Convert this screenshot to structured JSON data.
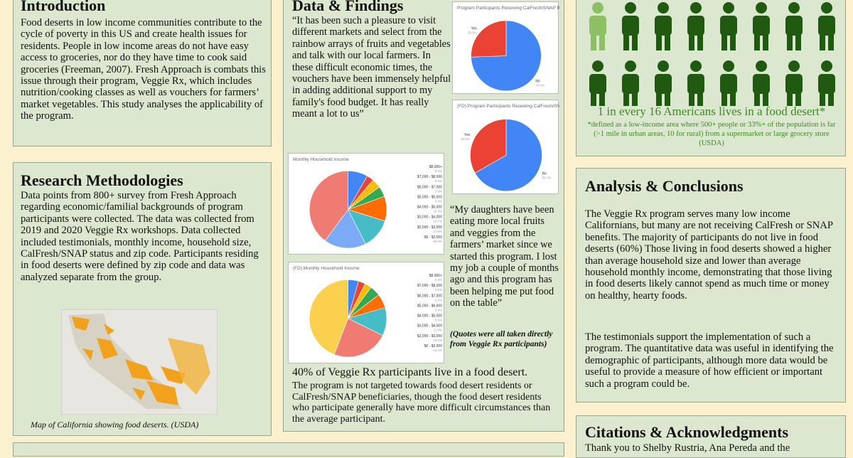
{
  "introduction": {
    "title": "Introduction",
    "body": "Food deserts in low income communities contribute to the cycle of poverty in this US  and create health issues for residents. People in low income areas do not have easy access to groceries, nor do they have time to cook said groceries (Freeman, 2007). Fresh Approach is combats this issue through their program, Veggie Rx, which includes nutrition/cooking classes as well as vouchers for farmers’ market vegetables. This study analyses the applicability of the program."
  },
  "methodology": {
    "title": "Research Methodologies",
    "body": "Data points from 800+ survey from Fresh Approach regarding economic/familial backgrounds of program participants were collected. The data was collected from 2019 and 2020 Veggie Rx workshops. Data collected included testimonials, monthly income, household size, CalFresh/SNAP status and zip code. Participants residing in food deserts were defined by zip code and data was analyzed separate from the group.",
    "map_caption": "Map of California showing food deserts. (USDA)"
  },
  "findings": {
    "title": "Data & Findings",
    "quote1": "“It has been such a pleasure to visit different markets and select from the rainbow arrays of fruits and vegetables and talk with our local farmers. In these difficult economic times, the vouchers have been immensely helpful in adding additional support to my family's food budget. It has really meant a lot to us”",
    "quote2": "“My daughters have been eating more local fruits and veggies from the farmers’ market since we started this program. I lost my job a couple of months ago and this program has been helping me put food on the table”",
    "quote_note": "(Quotes were all taken directly from Veggie Rx participants)",
    "headline": "40% of Veggie Rx participants live in a food desert.",
    "body": "The program is not targeted towards food desert residents or CalFresh/SNAP beneficiaries, though the food desert residents who participate generally have more difficult circumstances than the average participant."
  },
  "charts": [
    {
      "type": "pie",
      "title": "Program Participants Receiving CalFresh/SNAP Benefits",
      "labels": [
        "No",
        "Yes"
      ],
      "values": [
        74.4,
        25.6
      ],
      "value_labels": [
        "74.4%",
        "25.6%"
      ],
      "colors": [
        "#4285f4",
        "#ea4335"
      ]
    },
    {
      "type": "pie",
      "title": "(FD) Program Participants Receiving CalFresh/SNAP Benefits",
      "labels": [
        "No",
        "Yes"
      ],
      "values": [
        66.7,
        33.3
      ],
      "value_labels": [
        "66.7%",
        "33.3%"
      ],
      "colors": [
        "#4285f4",
        "#ea4335"
      ]
    },
    {
      "type": "pie",
      "title": "Monthly Household Income",
      "labels": [
        "$8,000+",
        "$7,000 - $8,000",
        "$6,000 - $7,000",
        "$5,000 - $6,000",
        "$4,000 - $5,000",
        "$3,000 - $4,000",
        "$2,000 - $3,000",
        "$0 - $2,000"
      ],
      "values": [
        8.3,
        2.9,
        3.9,
        4.4,
        10.3,
        12.7,
        17.6,
        39.9
      ],
      "value_labels": [
        "8.3%",
        "2.9%",
        "3.9%",
        "4.4%",
        "10.3%",
        "12.7%",
        "17.6%",
        "39.9%"
      ],
      "colors": [
        "#4285f4",
        "#ea4335",
        "#fbbc04",
        "#34a853",
        "#ff6d01",
        "#46bdc6",
        "#7baaf7",
        "#f07b72"
      ]
    },
    {
      "type": "pie",
      "title": "(FD) Monthly Household Income",
      "labels": [
        "$8,000+",
        "$7,000 - $8,000",
        "$6,000 - $7,000",
        "$5,000 - $6,000",
        "$4,000 - $5,000",
        "$3,000 - $4,000",
        "$2,000 - $3,000",
        "$0 - $2,000"
      ],
      "values": [
        4.4,
        2.9,
        2.9,
        4.4,
        5.9,
        11.8,
        23.5,
        44.2
      ],
      "value_labels": [
        "4.4%",
        "2.9%",
        "2.9%",
        "4.4%",
        "5.9%",
        "11.8%",
        "23.5%",
        "44.2%"
      ],
      "colors": [
        "#4285f4",
        "#ea4335",
        "#fbbc04",
        "#34a853",
        "#ff6d01",
        "#46bdc6",
        "#f07b72",
        "#fcd04f"
      ]
    }
  ],
  "stat": {
    "headline": "1 in every 16 Americans lives in a food desert*",
    "footnote": "*defined as a low-income area where 500+ people or 33%+ of the population is far (>1 mile in urban areas, 10 for rural) from a supermarket or large grocery store (USDA)"
  },
  "analysis": {
    "title": "Analysis & Conclusions",
    "paragraphs": [
      "The Veggie Rx program serves many low income Californians, but many are not receiving CalFresh or SNAP benefits. The majority of participants do not live in food deserts (60%) Those living in food deserts showed a higher than average household size and lower than average household monthly income, demonstrating that those living in food deserts likely cannot spend as much time or money on healthy, hearty foods.",
      "The testimonials support the implementation of such a program. The quantitative data was useful in identifying the demographic of participants, although more data would be useful to provide a measure of how efficient or important such a program could be."
    ]
  },
  "citations": {
    "title": "Citations & Acknowledgments",
    "body": "Thank you to Shelby Rustria, Ana Pereda and the"
  }
}
